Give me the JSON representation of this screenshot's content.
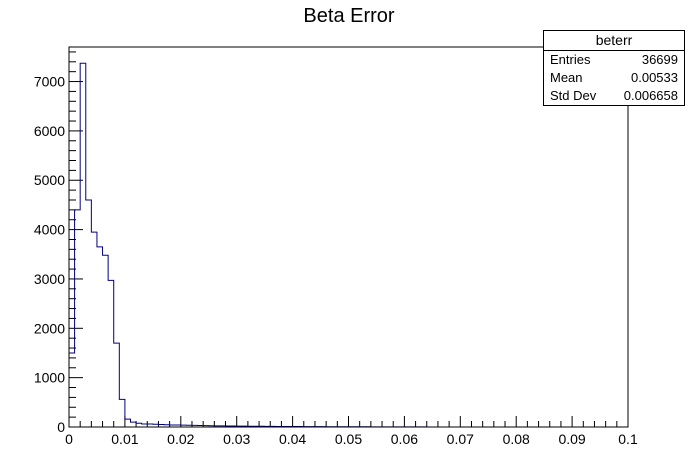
{
  "chart_data": {
    "type": "histogram",
    "title": "Beta Error",
    "xlim": [
      0,
      0.1
    ],
    "ylim": [
      0,
      7700
    ],
    "x_ticks": [
      "0",
      "0.01",
      "0.02",
      "0.03",
      "0.04",
      "0.05",
      "0.06",
      "0.07",
      "0.08",
      "0.09",
      "0.1"
    ],
    "y_ticks": [
      "0",
      "1000",
      "2000",
      "3000",
      "4000",
      "5000",
      "6000",
      "7000"
    ],
    "line_color": "#000080",
    "bin_width": 0.001,
    "bin_start": 0,
    "values": [
      1500,
      4400,
      7370,
      4600,
      3950,
      3650,
      3480,
      2970,
      1700,
      560,
      160,
      100,
      75,
      60,
      60,
      55,
      50,
      45,
      40,
      40,
      38,
      35,
      32,
      30,
      28,
      26,
      24,
      22,
      20,
      19,
      18,
      17,
      16,
      15,
      14,
      13,
      12,
      11,
      10,
      10,
      9,
      9,
      8,
      8,
      7,
      7,
      6,
      6,
      5,
      5,
      5,
      4,
      4,
      4,
      3,
      3,
      3,
      3,
      2,
      2,
      2,
      2,
      2,
      2,
      1,
      1,
      1,
      1,
      1,
      1,
      1,
      1,
      1,
      1,
      0,
      0,
      0,
      0,
      0,
      0,
      0,
      0,
      0,
      0,
      0,
      0,
      0,
      0,
      0,
      0,
      0,
      0,
      0,
      0,
      0,
      0,
      0,
      0,
      0,
      0
    ]
  },
  "stats": {
    "name": "beterr",
    "entries_label": "Entries",
    "entries_value": "36699",
    "mean_label": "Mean",
    "mean_value": "0.00533",
    "stddev_label": "Std Dev",
    "stddev_value": "0.006658"
  }
}
